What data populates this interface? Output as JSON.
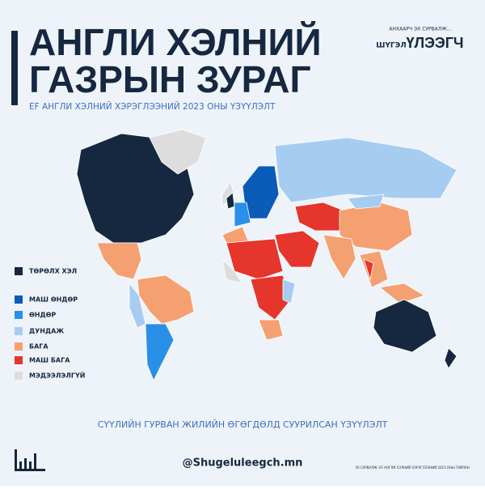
{
  "header": {
    "title_lines": [
      "АНГЛИ ХЭЛНИЙ",
      "ГАЗРЫН ЗУРАГ"
    ],
    "subtitle": "EF АНГЛИ ХЭЛНИЙ ХЭРЭГЛЭЭНИЙ 2023 ОНЫ ҮЗҮҮЛЭЛТ"
  },
  "logo": {
    "tagline": "АНХААРЧ ЭХ СУРВАЛЖ...",
    "word1": "ШҮГЭЛ",
    "word2": "ҮЛЭЭГЧ"
  },
  "legend": [
    {
      "label": "ТӨРӨЛХ ХЭЛ",
      "color": "#152840"
    },
    {
      "label": "МАШ ӨНДӨР",
      "color": "#0b5cb8"
    },
    {
      "label": "ӨНДӨР",
      "color": "#2a8fe6"
    },
    {
      "label": "ДУНДАЖ",
      "color": "#a6ccf2"
    },
    {
      "label": "БАГА",
      "color": "#f4a070"
    },
    {
      "label": "МАШ БАГА",
      "color": "#e5352c"
    },
    {
      "label": "МЭДЭЭЛЭЛГҮЙ",
      "color": "#dddddd"
    }
  ],
  "footer": {
    "note": "СҮҮЛИЙН ГУРВАН ЖИЛИЙН ӨГӨГДӨЛД СУУРИЛСАН ҮЗҮҮЛЭЛТ",
    "handle": "@Shugeluleegch.mn",
    "source": "ЭХ СУРВАЛЖ: EF АНГЛИ ХЭЛНИЙ ХЭРЭГЛЭЭНИЙ 2023 ОНЫ ТАЙЛАН"
  }
}
